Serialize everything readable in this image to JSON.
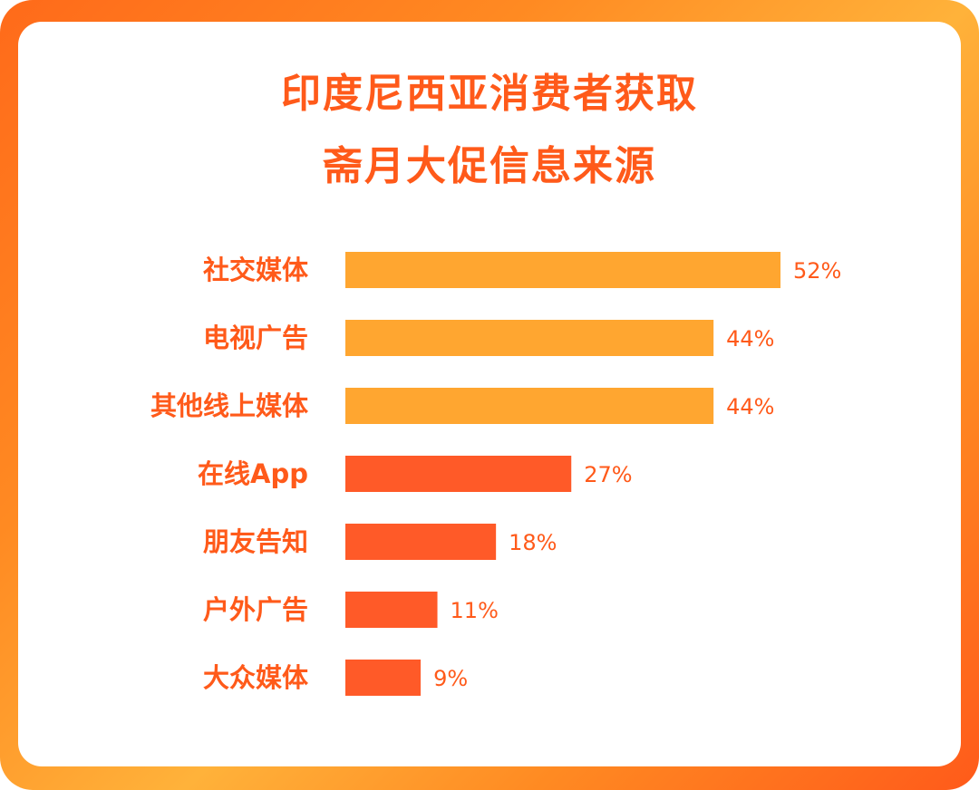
{
  "chart_data": {
    "type": "bar",
    "orientation": "horizontal",
    "title_lines": [
      "印度尼西亚消费者获取",
      "斋月大促信息来源"
    ],
    "categories": [
      "社交媒体",
      "电视广告",
      "其他线上媒体",
      "在线App",
      "朋友告知",
      "户外广告",
      "大众媒体"
    ],
    "values": [
      52,
      44,
      44,
      27,
      18,
      11,
      9
    ],
    "value_labels": [
      "52%",
      "44%",
      "44%",
      "27%",
      "18%",
      "11%",
      "9%"
    ],
    "unit": "%",
    "bar_colors": [
      "#ffa630",
      "#ffa630",
      "#ffa630",
      "#ff5a28",
      "#ff5a28",
      "#ff5a28",
      "#ff5a28"
    ],
    "text_color": "#ff5a1a",
    "frame_gradient": [
      "#ff6a1a",
      "#ffb23a",
      "#ff5a1a"
    ],
    "grid": false,
    "legend": "none"
  }
}
